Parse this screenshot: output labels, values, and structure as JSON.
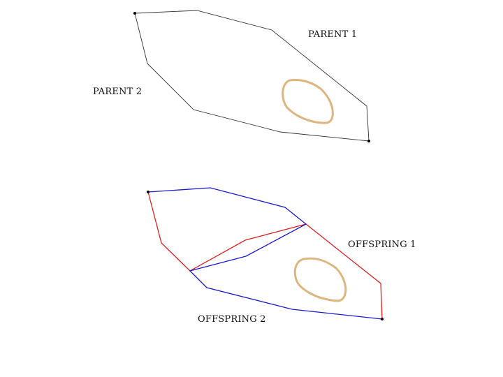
{
  "labels": {
    "parent1": "PARENT 1",
    "parent2": "PARENT 2",
    "offspring1": "OFFSPRING 1",
    "offspring2": "OFFSPRING 2"
  },
  "colors": {
    "parent_path": "#333333",
    "offspring1_path": "#e02020",
    "offspring2_path": "#1a1ad0",
    "obstacle": "#ddb57e",
    "endpoint": "#000000"
  }
}
